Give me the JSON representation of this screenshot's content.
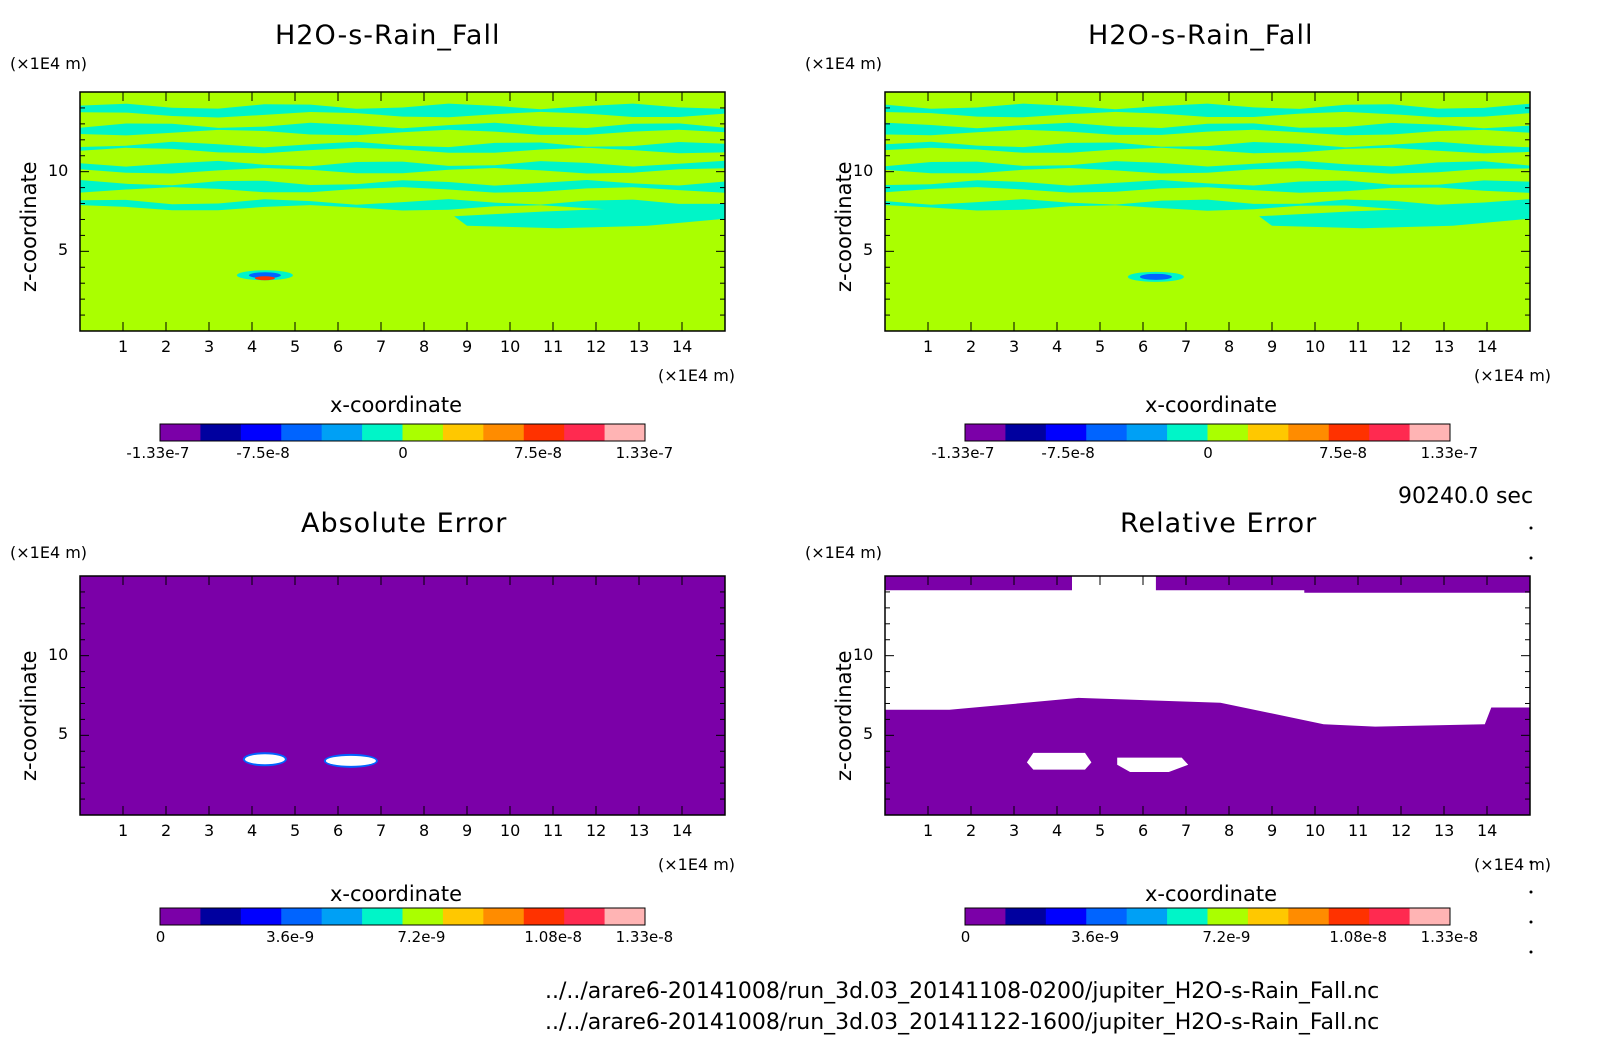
{
  "colors": {
    "scale": [
      "#7b00a8",
      "#00009f",
      "#0000ff",
      "#0064ff",
      "#00a0f5",
      "#00f5c8",
      "#aaff00",
      "#ffc800",
      "#ff8c00",
      "#ff3200",
      "#ff2a50",
      "#ffb4b4"
    ],
    "background_field": "#aaff00",
    "band": "#00f5c8",
    "error_field": "#7b00a8",
    "blank": "#ffffff"
  },
  "panels": [
    {
      "id": "top-left",
      "title": "H2O-s-Rain_Fall",
      "z_unit": "(×1E4 m)",
      "x_unit": "(×1E4 m)",
      "xlabel": "x-coordinate",
      "ylabel": "z-coordinate",
      "x_ticks": [
        "1",
        "2",
        "3",
        "4",
        "5",
        "6",
        "7",
        "8",
        "9",
        "10",
        "11",
        "12",
        "13",
        "14"
      ],
      "y_ticks": [
        "5",
        "10"
      ],
      "colorbar_ticks": [
        "-1.33e-7",
        "-7.5e-8",
        "0",
        "7.5e-8",
        "1.33e-7"
      ]
    },
    {
      "id": "top-right",
      "title": "H2O-s-Rain_Fall",
      "z_unit": "(×1E4 m)",
      "x_unit": "(×1E4 m)",
      "xlabel": "x-coordinate",
      "ylabel": "z-coordinate",
      "x_ticks": [
        "1",
        "2",
        "3",
        "4",
        "5",
        "6",
        "7",
        "8",
        "9",
        "10",
        "11",
        "12",
        "13",
        "14"
      ],
      "y_ticks": [
        "5",
        "10"
      ],
      "colorbar_ticks": [
        "-1.33e-7",
        "-7.5e-8",
        "0",
        "7.5e-8",
        "1.33e-7"
      ]
    },
    {
      "id": "bottom-left",
      "title": "Absolute Error",
      "z_unit": "(×1E4 m)",
      "x_unit": "(×1E4 m)",
      "xlabel": "x-coordinate",
      "ylabel": "z-coordinate",
      "x_ticks": [
        "1",
        "2",
        "3",
        "4",
        "5",
        "6",
        "7",
        "8",
        "9",
        "10",
        "11",
        "12",
        "13",
        "14"
      ],
      "y_ticks": [
        "5",
        "10"
      ],
      "colorbar_ticks": [
        "0",
        "3.6e-9",
        "7.2e-9",
        "1.08e-8",
        "1.33e-8"
      ]
    },
    {
      "id": "bottom-right",
      "title": "Relative Error",
      "z_unit": "(×1E4 m)",
      "x_unit": "(×1E4 m)",
      "xlabel": "x-coordinate",
      "ylabel": "z-coordinate",
      "x_ticks": [
        "1",
        "2",
        "3",
        "4",
        "5",
        "6",
        "7",
        "8",
        "9",
        "10",
        "11",
        "12",
        "13",
        "14"
      ],
      "y_ticks": [
        "5",
        "10"
      ],
      "colorbar_ticks": [
        "0",
        "3.6e-9",
        "7.2e-9",
        "1.08e-8",
        "1.33e-8"
      ]
    }
  ],
  "time_label": "90240.0 sec",
  "footer": {
    "file1": "../../arare6-20141008/run_3d.03_20141108-0200/jupiter_H2O-s-Rain_Fall.nc",
    "file2": "../../arare6-20141008/run_3d.03_20141122-1600/jupiter_H2O-s-Rain_Fall.nc"
  },
  "chart_data": [
    {
      "type": "heatmap",
      "title": "H2O-s-Rain_Fall",
      "xlabel": "x-coordinate",
      "ylabel": "z-coordinate",
      "xlim": [
        0,
        15
      ],
      "ylim": [
        0,
        15
      ],
      "colorbar_range": [
        -1.33e-07,
        1.33e-07
      ],
      "features": [
        {
          "x": 4.3,
          "z": 3.5,
          "note": "localized extremum"
        }
      ]
    },
    {
      "type": "heatmap",
      "title": "H2O-s-Rain_Fall",
      "xlabel": "x-coordinate",
      "ylabel": "z-coordinate",
      "xlim": [
        0,
        15
      ],
      "ylim": [
        0,
        15
      ],
      "colorbar_range": [
        -1.33e-07,
        1.33e-07
      ],
      "features": [
        {
          "x": 6.3,
          "z": 3.4,
          "note": "localized extremum"
        }
      ]
    },
    {
      "type": "heatmap",
      "title": "Absolute Error",
      "xlabel": "x-coordinate",
      "ylabel": "z-coordinate",
      "xlim": [
        0,
        15
      ],
      "ylim": [
        0,
        15
      ],
      "colorbar_range": [
        0,
        1.33e-08
      ],
      "features": [
        {
          "x": 4.3,
          "z": 3.5
        },
        {
          "x": 6.3,
          "z": 3.4
        }
      ]
    },
    {
      "type": "heatmap",
      "title": "Relative Error",
      "xlabel": "x-coordinate",
      "ylabel": "z-coordinate",
      "xlim": [
        0,
        15
      ],
      "ylim": [
        0,
        15
      ],
      "colorbar_range": [
        0,
        1.33e-08
      ]
    }
  ]
}
